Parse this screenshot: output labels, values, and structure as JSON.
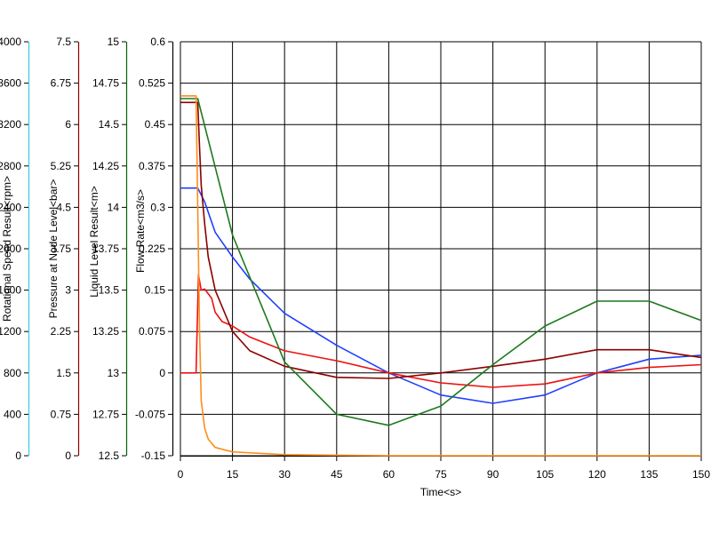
{
  "chart_data": {
    "type": "line",
    "grid": true,
    "legend": "none",
    "x_axis": {
      "label": "Time<s>",
      "range": [
        0,
        150
      ],
      "ticks": [
        0,
        15,
        30,
        45,
        60,
        75,
        90,
        105,
        120,
        135,
        150
      ]
    },
    "y_axes": [
      {
        "label": "Rotational Speed Result<rpm>",
        "color": "#33ccee",
        "range": [
          0,
          4000
        ],
        "ticks": [
          "0",
          "400",
          "800",
          "1200",
          "1600",
          "2000",
          "2400",
          "2800",
          "3200",
          "3600",
          "4000"
        ]
      },
      {
        "label": "Pressure at Node Level<bar>",
        "color": "#8b0000",
        "range": [
          0,
          7.5
        ],
        "ticks": [
          "0",
          "0.75",
          "1.5",
          "2.25",
          "3",
          "3.75",
          "4.5",
          "5.25",
          "6",
          "6.75",
          "7.5"
        ]
      },
      {
        "label": "Liquid Level Result<m>",
        "color": "#006400",
        "range": [
          12.5,
          15
        ],
        "ticks": [
          "12.5",
          "12.75",
          "13",
          "13.25",
          "13.5",
          "13.75",
          "14",
          "14.25",
          "14.5",
          "14.75",
          "15"
        ]
      },
      {
        "label": "Flow Rate<m3/s>",
        "color": "#000000",
        "range": [
          -0.15,
          0.6
        ],
        "ticks": [
          "-0.15",
          "-0.075",
          "0",
          "0.075",
          "0.15",
          "0.225",
          "0.3",
          "0.375",
          "0.45",
          "0.525",
          "0.6"
        ]
      }
    ],
    "series": [
      {
        "color": "#1f3fff",
        "x": [
          0,
          5,
          7,
          10,
          15,
          20,
          30,
          45,
          60,
          75,
          90,
          105,
          120,
          135,
          150
        ],
        "y": [
          0.335,
          0.335,
          0.31,
          0.255,
          0.21,
          0.17,
          0.108,
          0.05,
          0.0,
          -0.04,
          -0.055,
          -0.04,
          0.0,
          0.025,
          0.032
        ]
      },
      {
        "color": "#ee1111",
        "x": [
          0,
          4.5,
          5.2,
          6,
          7,
          9,
          10,
          12,
          15,
          20,
          30,
          45,
          60,
          75,
          90,
          105,
          120,
          135,
          150
        ],
        "y": [
          0.0,
          0.0,
          0.178,
          0.15,
          0.152,
          0.135,
          0.11,
          0.093,
          0.085,
          0.065,
          0.04,
          0.022,
          0.0,
          -0.018,
          -0.026,
          -0.02,
          0.0,
          0.01,
          0.015
        ]
      },
      {
        "color": "#8b0000",
        "x": [
          0,
          5,
          5.5,
          6,
          7,
          8,
          10,
          15,
          20,
          30,
          45,
          60,
          75,
          90,
          105,
          120,
          135,
          150
        ],
        "y": [
          0.49,
          0.49,
          0.41,
          0.34,
          0.27,
          0.21,
          0.15,
          0.075,
          0.04,
          0.012,
          -0.008,
          -0.01,
          0.0,
          0.012,
          0.025,
          0.042,
          0.042,
          0.028
        ]
      },
      {
        "color": "#1c7a1c",
        "x": [
          0,
          5,
          15,
          30,
          45,
          60,
          75,
          90,
          105,
          120,
          135,
          150
        ],
        "y": [
          0.497,
          0.497,
          0.25,
          0.02,
          -0.075,
          -0.095,
          -0.06,
          0.015,
          0.085,
          0.13,
          0.13,
          0.095
        ]
      },
      {
        "color": "#ff8c1a",
        "x": [
          0,
          4.5,
          5,
          5.5,
          6,
          7,
          8,
          10,
          15,
          30,
          60,
          150
        ],
        "y": [
          0.502,
          0.502,
          0.3,
          0.08,
          -0.05,
          -0.1,
          -0.12,
          -0.135,
          -0.143,
          -0.148,
          -0.15,
          -0.15
        ]
      }
    ]
  }
}
